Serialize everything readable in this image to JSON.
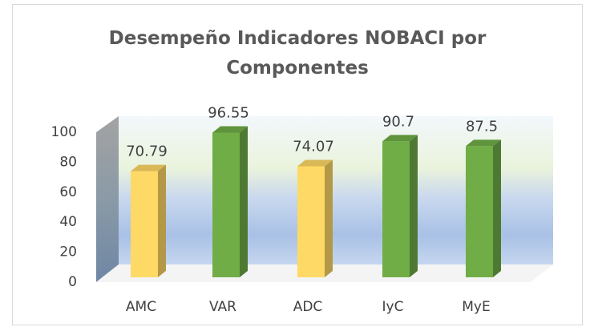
{
  "chart_data": {
    "type": "bar3d",
    "title": "Desempeño Indicadores NOBACI por Componentes",
    "categories": [
      "AMC",
      "VAR",
      "ADC",
      "IyC",
      "MyE"
    ],
    "values": [
      70.79,
      96.55,
      74.07,
      90.7,
      87.5
    ],
    "colors": [
      "#ffd966",
      "#70ad47",
      "#ffd966",
      "#70ad47",
      "#70ad47"
    ],
    "ylim": [
      0,
      100
    ],
    "yticks": [
      0,
      20,
      40,
      60,
      80,
      100
    ]
  }
}
